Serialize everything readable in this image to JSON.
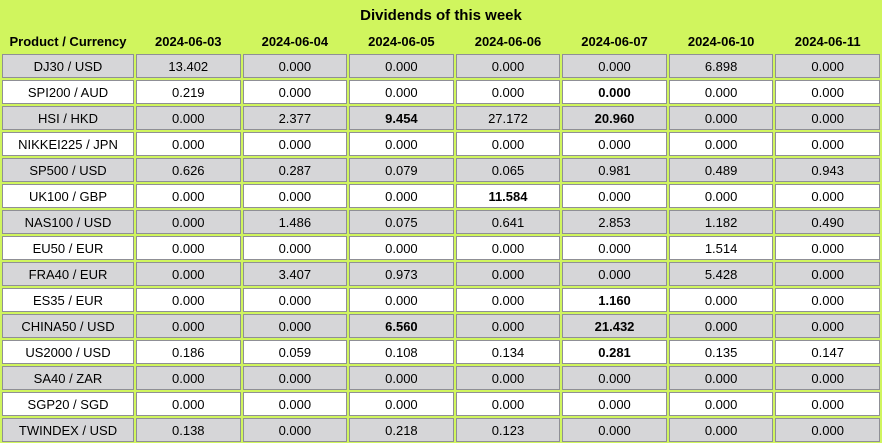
{
  "title": "Dividends of this week",
  "table": {
    "product_header": "Product / Currency",
    "date_headers": [
      "2024-06-03",
      "2024-06-04",
      "2024-06-05",
      "2024-06-06",
      "2024-06-07",
      "2024-06-10",
      "2024-06-11"
    ],
    "rows": [
      {
        "product": "DJ30 / USD",
        "values": [
          "13.402",
          "0.000",
          "0.000",
          "0.000",
          "0.000",
          "6.898",
          "0.000"
        ],
        "bold": []
      },
      {
        "product": "SPI200 / AUD",
        "values": [
          "0.219",
          "0.000",
          "0.000",
          "0.000",
          "0.000",
          "0.000",
          "0.000"
        ],
        "bold": [
          4
        ]
      },
      {
        "product": "HSI / HKD",
        "values": [
          "0.000",
          "2.377",
          "9.454",
          "27.172",
          "20.960",
          "0.000",
          "0.000"
        ],
        "bold": [
          2,
          4
        ]
      },
      {
        "product": "NIKKEI225 / JPN",
        "values": [
          "0.000",
          "0.000",
          "0.000",
          "0.000",
          "0.000",
          "0.000",
          "0.000"
        ],
        "bold": []
      },
      {
        "product": "SP500 / USD",
        "values": [
          "0.626",
          "0.287",
          "0.079",
          "0.065",
          "0.981",
          "0.489",
          "0.943"
        ],
        "bold": []
      },
      {
        "product": "UK100 / GBP",
        "values": [
          "0.000",
          "0.000",
          "0.000",
          "11.584",
          "0.000",
          "0.000",
          "0.000"
        ],
        "bold": [
          3
        ]
      },
      {
        "product": "NAS100 / USD",
        "values": [
          "0.000",
          "1.486",
          "0.075",
          "0.641",
          "2.853",
          "1.182",
          "0.490"
        ],
        "bold": []
      },
      {
        "product": "EU50 / EUR",
        "values": [
          "0.000",
          "0.000",
          "0.000",
          "0.000",
          "0.000",
          "1.514",
          "0.000"
        ],
        "bold": []
      },
      {
        "product": "FRA40 / EUR",
        "values": [
          "0.000",
          "3.407",
          "0.973",
          "0.000",
          "0.000",
          "5.428",
          "0.000"
        ],
        "bold": []
      },
      {
        "product": "ES35 / EUR",
        "values": [
          "0.000",
          "0.000",
          "0.000",
          "0.000",
          "1.160",
          "0.000",
          "0.000"
        ],
        "bold": [
          4
        ]
      },
      {
        "product": "CHINA50 / USD",
        "values": [
          "0.000",
          "0.000",
          "6.560",
          "0.000",
          "21.432",
          "0.000",
          "0.000"
        ],
        "bold": [
          2,
          4
        ]
      },
      {
        "product": "US2000 / USD",
        "values": [
          "0.186",
          "0.059",
          "0.108",
          "0.134",
          "0.281",
          "0.135",
          "0.147"
        ],
        "bold": [
          4
        ]
      },
      {
        "product": "SA40 / ZAR",
        "values": [
          "0.000",
          "0.000",
          "0.000",
          "0.000",
          "0.000",
          "0.000",
          "0.000"
        ],
        "bold": []
      },
      {
        "product": "SGP20 / SGD",
        "values": [
          "0.000",
          "0.000",
          "0.000",
          "0.000",
          "0.000",
          "0.000",
          "0.000"
        ],
        "bold": []
      },
      {
        "product": "TWINDEX / USD",
        "values": [
          "0.138",
          "0.000",
          "0.218",
          "0.123",
          "0.000",
          "0.000",
          "0.000"
        ],
        "bold": []
      }
    ]
  },
  "colors": {
    "header_bg": "#d0f55e",
    "grid": "#d0f55e",
    "row_gray": "#d6d6d8",
    "row_white": "#ffffff",
    "cell_border": "#8f8f96",
    "text": "#000000"
  },
  "chart_data": {
    "type": "table",
    "title": "Dividends of this week",
    "categories": [
      "2024-06-03",
      "2024-06-04",
      "2024-06-05",
      "2024-06-06",
      "2024-06-07",
      "2024-06-10",
      "2024-06-11"
    ],
    "series": [
      {
        "name": "DJ30 / USD",
        "values": [
          13.402,
          0.0,
          0.0,
          0.0,
          0.0,
          6.898,
          0.0
        ]
      },
      {
        "name": "SPI200 / AUD",
        "values": [
          0.219,
          0.0,
          0.0,
          0.0,
          0.0,
          0.0,
          0.0
        ]
      },
      {
        "name": "HSI / HKD",
        "values": [
          0.0,
          2.377,
          9.454,
          27.172,
          20.96,
          0.0,
          0.0
        ]
      },
      {
        "name": "NIKKEI225 / JPN",
        "values": [
          0.0,
          0.0,
          0.0,
          0.0,
          0.0,
          0.0,
          0.0
        ]
      },
      {
        "name": "SP500 / USD",
        "values": [
          0.626,
          0.287,
          0.079,
          0.065,
          0.981,
          0.489,
          0.943
        ]
      },
      {
        "name": "UK100 / GBP",
        "values": [
          0.0,
          0.0,
          0.0,
          11.584,
          0.0,
          0.0,
          0.0
        ]
      },
      {
        "name": "NAS100 / USD",
        "values": [
          0.0,
          1.486,
          0.075,
          0.641,
          2.853,
          1.182,
          0.49
        ]
      },
      {
        "name": "EU50 / EUR",
        "values": [
          0.0,
          0.0,
          0.0,
          0.0,
          0.0,
          1.514,
          0.0
        ]
      },
      {
        "name": "FRA40 / EUR",
        "values": [
          0.0,
          3.407,
          0.973,
          0.0,
          0.0,
          5.428,
          0.0
        ]
      },
      {
        "name": "ES35 / EUR",
        "values": [
          0.0,
          0.0,
          0.0,
          0.0,
          1.16,
          0.0,
          0.0
        ]
      },
      {
        "name": "CHINA50 / USD",
        "values": [
          0.0,
          0.0,
          6.56,
          0.0,
          21.432,
          0.0,
          0.0
        ]
      },
      {
        "name": "US2000 / USD",
        "values": [
          0.186,
          0.059,
          0.108,
          0.134,
          0.281,
          0.135,
          0.147
        ]
      },
      {
        "name": "SA40 / ZAR",
        "values": [
          0.0,
          0.0,
          0.0,
          0.0,
          0.0,
          0.0,
          0.0
        ]
      },
      {
        "name": "SGP20 / SGD",
        "values": [
          0.0,
          0.0,
          0.0,
          0.0,
          0.0,
          0.0,
          0.0
        ]
      },
      {
        "name": "TWINDEX / USD",
        "values": [
          0.138,
          0.0,
          0.218,
          0.123,
          0.0,
          0.0,
          0.0
        ]
      }
    ]
  }
}
